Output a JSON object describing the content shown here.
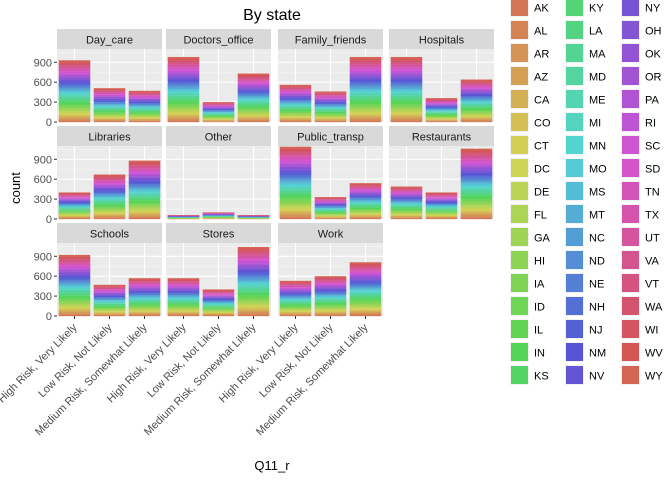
{
  "chart_data": {
    "type": "bar",
    "stacked": true,
    "title": "By state",
    "xlabel": "Q11_r",
    "ylabel": "count",
    "ylim": [
      0,
      1100
    ],
    "y_ticks": [
      0,
      300,
      600,
      900
    ],
    "grid": true,
    "legend_placement": "right",
    "categories": [
      "High Risk, Very Likely",
      "Low Risk, Not Likely",
      "Medium Risk, Somewhat Likely"
    ],
    "facets": [
      {
        "name": "Day_care",
        "values": [
          930,
          510,
          470
        ]
      },
      {
        "name": "Doctors_office",
        "values": [
          980,
          300,
          730
        ]
      },
      {
        "name": "Family_friends",
        "values": [
          560,
          460,
          980
        ]
      },
      {
        "name": "Hospitals",
        "values": [
          980,
          360,
          640
        ]
      },
      {
        "name": "Libraries",
        "values": [
          400,
          670,
          880
        ]
      },
      {
        "name": "Other",
        "values": [
          60,
          100,
          60
        ]
      },
      {
        "name": "Public_transp",
        "values": [
          1090,
          330,
          540
        ]
      },
      {
        "name": "Restaurants",
        "values": [
          490,
          400,
          1060
        ]
      },
      {
        "name": "Schools",
        "values": [
          920,
          470,
          570
        ]
      },
      {
        "name": "Stores",
        "values": [
          570,
          400,
          1040
        ]
      },
      {
        "name": "Work",
        "values": [
          530,
          600,
          810
        ]
      }
    ],
    "legend_title": "",
    "legend": [
      "AK",
      "AL",
      "AR",
      "AZ",
      "CA",
      "CO",
      "CT",
      "DC",
      "DE",
      "FL",
      "GA",
      "HI",
      "IA",
      "ID",
      "IL",
      "IN",
      "KS",
      "KY",
      "LA",
      "MA",
      "MD",
      "ME",
      "MI",
      "MN",
      "MO",
      "MS",
      "MT",
      "NC",
      "ND",
      "NE",
      "NH",
      "NJ",
      "NM",
      "NV",
      "NY",
      "OH",
      "OK",
      "OR",
      "PA",
      "RI",
      "SC",
      "SD",
      "TN",
      "TX",
      "UT",
      "VA",
      "VT",
      "WA",
      "WI",
      "WV",
      "WY"
    ]
  }
}
